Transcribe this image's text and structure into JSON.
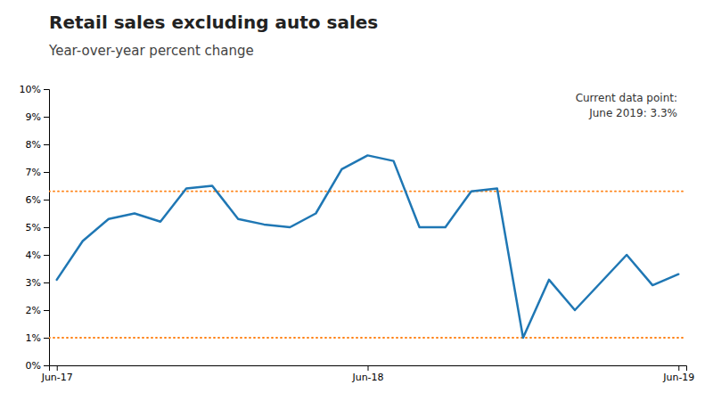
{
  "chart_data": {
    "type": "line",
    "title": "Retail sales excluding auto sales",
    "subtitle": "Year-over-year percent change",
    "categories": [
      "Jun-17",
      null,
      null,
      null,
      null,
      null,
      null,
      null,
      null,
      null,
      null,
      null,
      "Jun-18",
      null,
      null,
      null,
      null,
      null,
      null,
      null,
      null,
      null,
      null,
      null,
      "Jun-19"
    ],
    "values": [
      3.1,
      4.5,
      5.3,
      5.5,
      5.2,
      6.4,
      6.5,
      5.3,
      5.1,
      5.0,
      5.5,
      7.1,
      7.6,
      7.4,
      5.0,
      5.0,
      6.3,
      6.4,
      1.0,
      3.1,
      2.0,
      3.0,
      4.0,
      2.9,
      3.3
    ],
    "hlines": [
      6.3,
      1.0
    ],
    "ylim": [
      0,
      10
    ],
    "yticks": [
      {
        "value": 0,
        "label": "0%"
      },
      {
        "value": 1,
        "label": "1%"
      },
      {
        "value": 2,
        "label": "2%"
      },
      {
        "value": 3,
        "label": "3%"
      },
      {
        "value": 4,
        "label": "4%"
      },
      {
        "value": 5,
        "label": "5%"
      },
      {
        "value": 6,
        "label": "6%"
      },
      {
        "value": 7,
        "label": "7%"
      },
      {
        "value": 8,
        "label": "8%"
      },
      {
        "value": 9,
        "label": "9%"
      },
      {
        "value": 10,
        "label": "10%"
      }
    ],
    "annotations": [
      "Current data point:",
      "June 2019: 3.3%"
    ],
    "grid": false
  }
}
